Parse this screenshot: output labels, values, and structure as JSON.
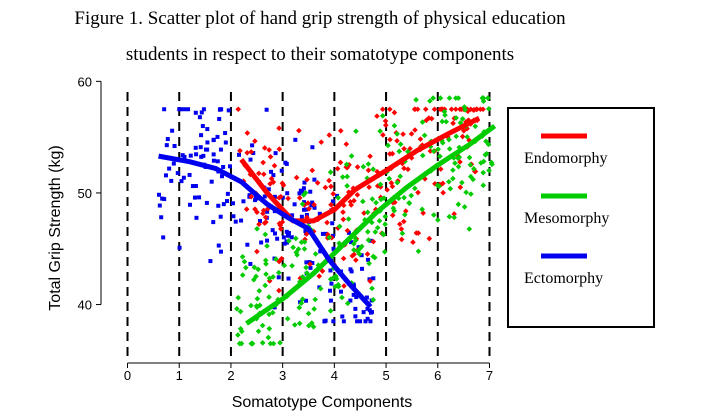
{
  "figure": {
    "title_line1": "Figure 1. Scatter plot of hand grip strength of physical education",
    "title_line2": "students in respect to their somatotype components"
  },
  "chart_data": {
    "type": "scatter",
    "title": "Figure 1. Scatter plot of hand grip strength of physical education students in respect to their somatotype components",
    "xlabel": "Somatotype Components",
    "ylabel": "Total Grip Strength (kg)",
    "xlim": [
      -0.3,
      7.3
    ],
    "ylim": [
      35.3,
      60.3
    ],
    "x_ticks": [
      0,
      1,
      2,
      3,
      4,
      5,
      6,
      7
    ],
    "y_ticks": [
      40,
      50,
      60
    ],
    "vertical_dashed_grid_at": [
      0,
      1,
      2,
      3,
      4,
      5,
      6,
      7
    ],
    "legend_position": "right",
    "series": [
      {
        "name": "Endomorphy",
        "color": "#ff0000",
        "marker": "diamond",
        "trend_line": {
          "x": [
            2.2,
            2.7,
            3.2,
            3.6,
            4.0,
            4.4,
            5.0,
            5.6,
            6.2,
            6.8
          ],
          "y": [
            53.0,
            50.0,
            47.5,
            47.5,
            48.5,
            50.3,
            52.0,
            53.8,
            55.3,
            56.7
          ]
        },
        "points": {
          "x_range": [
            2.1,
            6.9
          ],
          "y_range": [
            36.5,
            57.5
          ],
          "count": 230
        }
      },
      {
        "name": "Mesomorphy",
        "color": "#00cc00",
        "marker": "diamond",
        "trend_line": {
          "x": [
            2.3,
            3.0,
            3.6,
            4.2,
            4.8,
            5.4,
            6.0,
            6.6,
            7.1
          ],
          "y": [
            38.3,
            40.5,
            42.8,
            45.5,
            48.2,
            50.5,
            52.5,
            54.3,
            56.0
          ]
        },
        "points": {
          "x_range": [
            2.1,
            7.1
          ],
          "y_range": [
            36.5,
            58.5
          ],
          "count": 260
        }
      },
      {
        "name": "Ectomorphy",
        "color": "#0000ee",
        "marker": "square",
        "trend_line": {
          "x": [
            0.6,
            1.2,
            1.7,
            2.2,
            2.7,
            3.1,
            3.5,
            3.9,
            4.3,
            4.7
          ],
          "y": [
            53.3,
            52.8,
            52.2,
            51.0,
            49.0,
            47.8,
            46.8,
            44.0,
            41.8,
            39.8
          ]
        },
        "points": {
          "x_range": [
            0.6,
            4.8
          ],
          "y_range": [
            38.5,
            57.5
          ],
          "count": 220
        }
      }
    ]
  },
  "colors": {
    "endomorphy": "#ff0000",
    "mesomorphy": "#00cc00",
    "ectomorphy": "#0000ee"
  }
}
